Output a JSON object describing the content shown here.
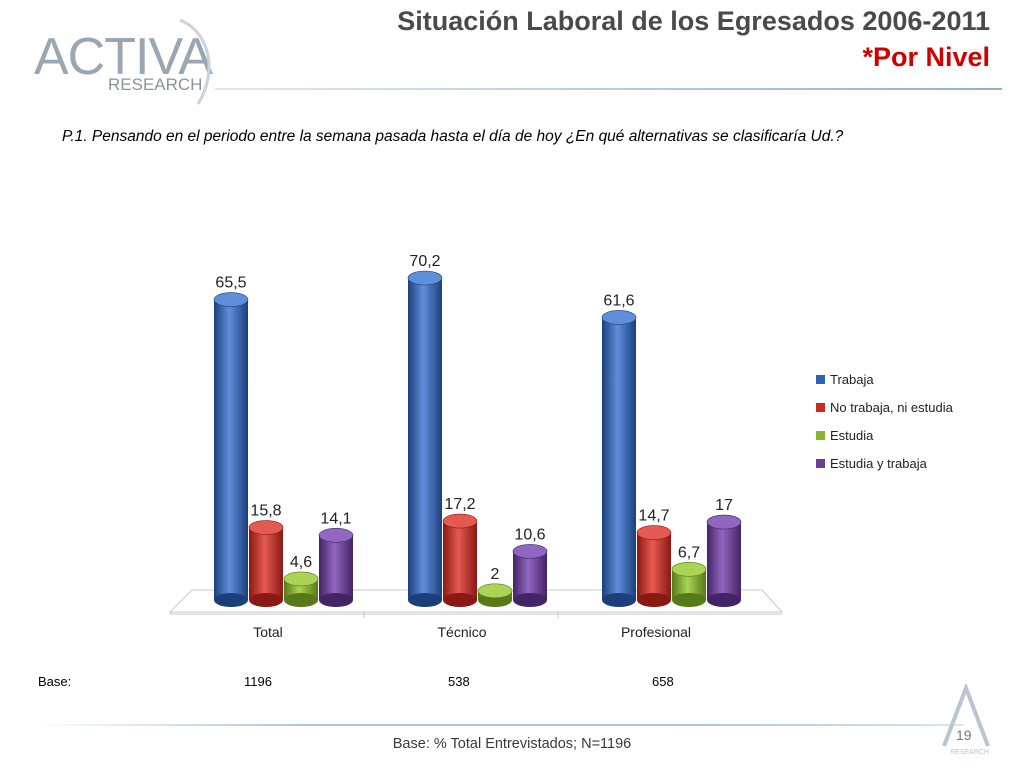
{
  "logo": {
    "main": "ACTIVA",
    "sub": "RESEARCH",
    "corner_sub": "RESEARCH"
  },
  "header": {
    "title": "Situación Laboral de los Egresados 2006-2011",
    "subtitle": "*Por Nivel"
  },
  "question": "P.1.  Pensando en el periodo entre la semana pasada hasta el día de hoy ¿En qué alternativas se clasificaría Ud.?",
  "base_row": {
    "label": "Base:",
    "values": [
      "1196",
      "538",
      "658"
    ]
  },
  "footer": {
    "note": "Base: % Total Entrevistados; N=1196",
    "page": "19"
  },
  "colors": {
    "title": "#4a4a4a",
    "subtitle": "#d00000",
    "series": [
      "#2e63b8",
      "#cc2a24",
      "#86b82c",
      "#6a3d9a"
    ],
    "series_dark": [
      "#1c3f7c",
      "#8a1814",
      "#557a17",
      "#432464"
    ],
    "series_light": [
      "#5e8fdb",
      "#e45a52",
      "#a9d455",
      "#9166c0"
    ]
  },
  "chart_data": {
    "type": "bar",
    "categories": [
      "Total",
      "Técnico",
      "Profesional"
    ],
    "series": [
      {
        "name": "Trabaja",
        "values": [
          65.5,
          70.2,
          61.6
        ],
        "labels": [
          "65,5",
          "70,2",
          "61,6"
        ]
      },
      {
        "name": "No trabaja, ni estudia",
        "values": [
          15.8,
          17.2,
          14.7
        ],
        "labels": [
          "15,8",
          "17,2",
          "14,7"
        ]
      },
      {
        "name": "Estudia",
        "values": [
          4.6,
          2,
          6.7
        ],
        "labels": [
          "4,6",
          "2",
          "6,7"
        ]
      },
      {
        "name": "Estudia y trabaja",
        "values": [
          14.1,
          10.6,
          17
        ],
        "labels": [
          "14,1",
          "10,6",
          "17"
        ]
      }
    ],
    "ylim": [
      0,
      70.2
    ],
    "title": "",
    "xlabel": "",
    "ylabel": "",
    "grid": false,
    "legend_position": "right",
    "style": "3d cylinders"
  }
}
